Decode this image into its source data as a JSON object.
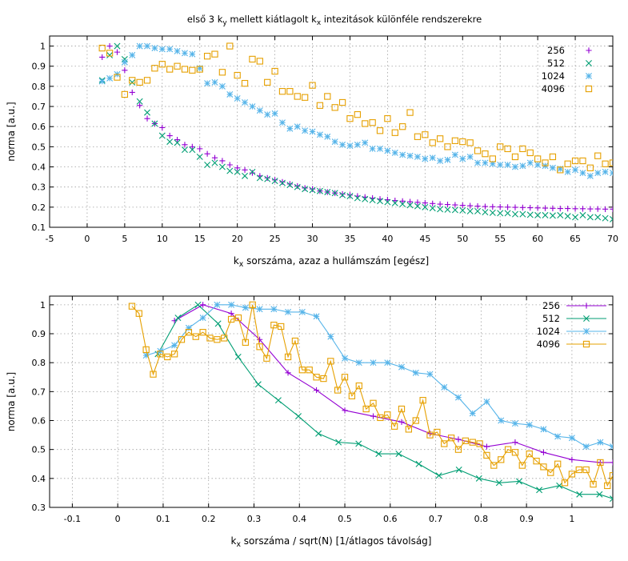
{
  "figure_title": "első 3 k_y mellett kiátlagolt k_x intezitások különféle rendszerekre",
  "colors": {
    "256": "#9400d3",
    "512": "#009e73",
    "1024": "#56b4e9",
    "4096": "#e6a000"
  },
  "chart_data": [
    {
      "type": "scatter",
      "title": "első 3 k_y mellett kiátlagolt k_x intezitások különféle rendszerekre",
      "xlabel": "k_x sorszáma, azaz a hullámszám [egész]",
      "ylabel": "norma [a.u.]",
      "xlim": [
        -5,
        70
      ],
      "ylim": [
        0.1,
        1.05
      ],
      "xticks": [
        -5,
        0,
        5,
        10,
        15,
        20,
        25,
        30,
        35,
        40,
        45,
        50,
        55,
        60,
        65,
        70
      ],
      "yticks": [
        0.1,
        0.2,
        0.3,
        0.4,
        0.5,
        0.6,
        0.7,
        0.8,
        0.9,
        1
      ],
      "grid": true,
      "legend": "top-right",
      "series": [
        {
          "name": "256",
          "marker": "plus",
          "x": [
            2,
            3,
            4,
            5,
            6,
            7,
            8,
            9,
            10,
            11,
            12,
            13,
            14,
            15,
            16,
            17,
            18,
            19,
            20,
            21,
            22,
            23,
            24,
            25,
            26,
            27,
            28,
            29,
            30,
            31,
            32,
            33,
            34,
            35,
            36,
            37,
            38,
            39,
            40,
            41,
            42,
            43,
            44,
            45,
            46,
            47,
            48,
            49,
            50,
            51,
            52,
            53,
            54,
            55,
            56,
            57,
            58,
            59,
            60,
            61,
            62,
            63,
            64,
            65,
            66,
            67,
            68,
            69,
            70
          ],
          "y": [
            0.945,
            1.0,
            0.97,
            0.88,
            0.77,
            0.705,
            0.64,
            0.615,
            0.595,
            0.555,
            0.535,
            0.51,
            0.5,
            0.49,
            0.465,
            0.445,
            0.43,
            0.41,
            0.395,
            0.385,
            0.37,
            0.355,
            0.345,
            0.335,
            0.325,
            0.315,
            0.305,
            0.295,
            0.29,
            0.28,
            0.275,
            0.27,
            0.265,
            0.26,
            0.255,
            0.25,
            0.245,
            0.24,
            0.237,
            0.233,
            0.23,
            0.227,
            0.224,
            0.221,
            0.218,
            0.215,
            0.213,
            0.211,
            0.209,
            0.207,
            0.205,
            0.203,
            0.202,
            0.201,
            0.2,
            0.199,
            0.198,
            0.197,
            0.196,
            0.195,
            0.194,
            0.193,
            0.193,
            0.192,
            0.192,
            0.191,
            0.191,
            0.19,
            0.19
          ]
        },
        {
          "name": "512",
          "marker": "cross",
          "x": [
            2,
            3,
            4,
            5,
            6,
            7,
            8,
            9,
            10,
            11,
            12,
            13,
            14,
            15,
            16,
            17,
            18,
            19,
            20,
            21,
            22,
            23,
            24,
            25,
            26,
            27,
            28,
            29,
            30,
            31,
            32,
            33,
            34,
            35,
            36,
            37,
            38,
            39,
            40,
            41,
            42,
            43,
            44,
            45,
            46,
            47,
            48,
            49,
            50,
            51,
            52,
            53,
            54,
            55,
            56,
            57,
            58,
            59,
            60,
            61,
            62,
            63,
            64,
            65,
            66,
            67,
            68,
            69,
            70
          ],
          "y": [
            0.83,
            0.955,
            1.0,
            0.935,
            0.82,
            0.725,
            0.67,
            0.615,
            0.555,
            0.525,
            0.52,
            0.485,
            0.485,
            0.45,
            0.41,
            0.42,
            0.4,
            0.38,
            0.375,
            0.355,
            0.375,
            0.345,
            0.34,
            0.33,
            0.32,
            0.31,
            0.3,
            0.29,
            0.285,
            0.28,
            0.275,
            0.27,
            0.26,
            0.255,
            0.245,
            0.24,
            0.235,
            0.23,
            0.225,
            0.22,
            0.215,
            0.21,
            0.205,
            0.2,
            0.195,
            0.19,
            0.188,
            0.186,
            0.184,
            0.18,
            0.18,
            0.175,
            0.172,
            0.17,
            0.17,
            0.165,
            0.165,
            0.162,
            0.16,
            0.16,
            0.158,
            0.16,
            0.155,
            0.15,
            0.16,
            0.15,
            0.15,
            0.145,
            0.14
          ]
        },
        {
          "name": "1024",
          "marker": "star",
          "x": [
            2,
            3,
            4,
            5,
            6,
            7,
            8,
            9,
            10,
            11,
            12,
            13,
            14,
            15,
            16,
            17,
            18,
            19,
            20,
            21,
            22,
            23,
            24,
            25,
            26,
            27,
            28,
            29,
            30,
            31,
            32,
            33,
            34,
            35,
            36,
            37,
            38,
            39,
            40,
            41,
            42,
            43,
            44,
            45,
            46,
            47,
            48,
            49,
            50,
            51,
            52,
            53,
            54,
            55,
            56,
            57,
            58,
            59,
            60,
            61,
            62,
            63,
            64,
            65,
            66,
            67,
            68,
            69,
            70
          ],
          "y": [
            0.825,
            0.84,
            0.86,
            0.92,
            0.955,
            1.0,
            1.0,
            0.99,
            0.985,
            0.985,
            0.975,
            0.965,
            0.96,
            0.89,
            0.815,
            0.82,
            0.8,
            0.76,
            0.74,
            0.72,
            0.7,
            0.68,
            0.66,
            0.665,
            0.62,
            0.59,
            0.6,
            0.58,
            0.575,
            0.56,
            0.55,
            0.525,
            0.51,
            0.505,
            0.51,
            0.52,
            0.49,
            0.49,
            0.48,
            0.47,
            0.46,
            0.455,
            0.45,
            0.44,
            0.445,
            0.43,
            0.435,
            0.46,
            0.44,
            0.45,
            0.42,
            0.42,
            0.415,
            0.41,
            0.41,
            0.4,
            0.405,
            0.42,
            0.41,
            0.405,
            0.395,
            0.39,
            0.375,
            0.385,
            0.37,
            0.355,
            0.37,
            0.375,
            0.37
          ]
        },
        {
          "name": "4096",
          "marker": "box",
          "x": [
            2,
            3,
            4,
            5,
            6,
            7,
            8,
            9,
            10,
            11,
            12,
            13,
            14,
            15,
            16,
            17,
            18,
            19,
            20,
            21,
            22,
            23,
            24,
            25,
            26,
            27,
            28,
            29,
            30,
            31,
            32,
            33,
            34,
            35,
            36,
            37,
            38,
            39,
            40,
            41,
            42,
            43,
            44,
            45,
            46,
            47,
            48,
            49,
            50,
            51,
            52,
            53,
            54,
            55,
            56,
            57,
            58,
            59,
            60,
            61,
            62,
            63,
            64,
            65,
            66,
            67,
            68,
            69,
            70
          ],
          "y": [
            0.99,
            0.965,
            0.845,
            0.76,
            0.83,
            0.82,
            0.83,
            0.89,
            0.91,
            0.885,
            0.9,
            0.885,
            0.88,
            0.885,
            0.95,
            0.96,
            0.87,
            1.0,
            0.855,
            0.815,
            0.935,
            0.925,
            0.82,
            0.875,
            0.775,
            0.775,
            0.75,
            0.745,
            0.805,
            0.705,
            0.75,
            0.695,
            0.72,
            0.64,
            0.66,
            0.615,
            0.62,
            0.58,
            0.64,
            0.57,
            0.6,
            0.67,
            0.55,
            0.56,
            0.52,
            0.54,
            0.5,
            0.53,
            0.525,
            0.52,
            0.48,
            0.465,
            0.44,
            0.5,
            0.49,
            0.45,
            0.49,
            0.47,
            0.44,
            0.42,
            0.45,
            0.385,
            0.415,
            0.43,
            0.43,
            0.395,
            0.455,
            0.415,
            0.42
          ]
        }
      ]
    },
    {
      "type": "line",
      "xlabel": "k_x sorszáma / sqrt(N) [1/átlagos távolság]",
      "ylabel": "norma [a.u.]",
      "xlim": [
        -0.15,
        1.09
      ],
      "ylim": [
        0.3,
        1.03
      ],
      "xticks": [
        -0.1,
        0,
        0.1,
        0.2,
        0.3,
        0.4,
        0.5,
        0.6,
        0.7,
        0.8,
        0.9,
        1
      ],
      "xticklabels": [
        "-0.1",
        "0",
        "0.1",
        "0.2",
        "0.3",
        "0.4",
        "0.5",
        "0.6",
        "0.7",
        "0.8",
        "0.9",
        "1"
      ],
      "yticks": [
        0.3,
        0.4,
        0.5,
        0.6,
        0.7,
        0.8,
        0.9,
        1
      ],
      "grid": true,
      "legend": "top-right",
      "series": [
        {
          "name": "256",
          "marker": "plus",
          "x": [
            0.125,
            0.1875,
            0.25,
            0.3125,
            0.375,
            0.4375,
            0.5,
            0.5625,
            0.625,
            0.6875,
            0.75,
            0.8125,
            0.875,
            0.9375,
            1.0,
            1.0625,
            1.09
          ],
          "y": [
            0.945,
            1.0,
            0.97,
            0.88,
            0.765,
            0.705,
            0.635,
            0.615,
            0.595,
            0.555,
            0.535,
            0.51,
            0.525,
            0.49,
            0.465,
            0.455,
            0.455
          ]
        },
        {
          "name": "512",
          "marker": "cross",
          "x": [
            0.0884,
            0.1326,
            0.1768,
            0.221,
            0.2652,
            0.3094,
            0.3536,
            0.3978,
            0.442,
            0.4861,
            0.5303,
            0.5745,
            0.6187,
            0.6629,
            0.7071,
            0.7513,
            0.7955,
            0.8397,
            0.8839,
            0.9281,
            0.9723,
            1.0165,
            1.0607,
            1.09
          ],
          "y": [
            0.83,
            0.955,
            1.0,
            0.935,
            0.82,
            0.725,
            0.67,
            0.615,
            0.555,
            0.525,
            0.52,
            0.485,
            0.485,
            0.45,
            0.41,
            0.43,
            0.4,
            0.385,
            0.39,
            0.36,
            0.375,
            0.345,
            0.345,
            0.33
          ]
        },
        {
          "name": "1024",
          "marker": "star",
          "x": [
            0.0625,
            0.0938,
            0.125,
            0.1563,
            0.1875,
            0.2188,
            0.25,
            0.2813,
            0.3125,
            0.3438,
            0.375,
            0.4063,
            0.4375,
            0.4688,
            0.5,
            0.5313,
            0.5625,
            0.5938,
            0.625,
            0.6563,
            0.6875,
            0.7188,
            0.75,
            0.7813,
            0.8125,
            0.8438,
            0.875,
            0.9063,
            0.9375,
            0.9688,
            1.0,
            1.0313,
            1.0625,
            1.09
          ],
          "y": [
            0.825,
            0.84,
            0.86,
            0.92,
            0.955,
            1.0,
            1.0,
            0.99,
            0.985,
            0.985,
            0.975,
            0.975,
            0.96,
            0.89,
            0.815,
            0.8,
            0.8,
            0.8,
            0.785,
            0.765,
            0.76,
            0.715,
            0.68,
            0.625,
            0.665,
            0.6,
            0.59,
            0.585,
            0.57,
            0.545,
            0.54,
            0.51,
            0.525,
            0.51
          ]
        },
        {
          "name": "4096",
          "marker": "box",
          "x": [
            0.0313,
            0.0469,
            0.0625,
            0.0781,
            0.0938,
            0.1094,
            0.125,
            0.1406,
            0.1563,
            0.1719,
            0.1875,
            0.2031,
            0.2188,
            0.2344,
            0.25,
            0.2656,
            0.2813,
            0.2969,
            0.3125,
            0.3281,
            0.3438,
            0.3594,
            0.375,
            0.3906,
            0.4063,
            0.4219,
            0.4375,
            0.4531,
            0.4688,
            0.4844,
            0.5,
            0.5156,
            0.5313,
            0.5469,
            0.5625,
            0.5781,
            0.5938,
            0.6094,
            0.625,
            0.6406,
            0.6563,
            0.6719,
            0.6875,
            0.7031,
            0.7188,
            0.7344,
            0.75,
            0.7656,
            0.7813,
            0.7969,
            0.8125,
            0.8281,
            0.8438,
            0.8594,
            0.875,
            0.8906,
            0.9063,
            0.9219,
            0.9375,
            0.9531,
            0.9688,
            0.9844,
            1.0,
            1.0156,
            1.0313,
            1.0469,
            1.0625,
            1.0781,
            1.09
          ],
          "y": [
            0.995,
            0.97,
            0.845,
            0.76,
            0.83,
            0.82,
            0.83,
            0.88,
            0.905,
            0.89,
            0.905,
            0.885,
            0.88,
            0.885,
            0.95,
            0.955,
            0.87,
            1.0,
            0.855,
            0.815,
            0.93,
            0.925,
            0.82,
            0.875,
            0.775,
            0.775,
            0.75,
            0.745,
            0.805,
            0.705,
            0.75,
            0.685,
            0.72,
            0.64,
            0.66,
            0.61,
            0.62,
            0.58,
            0.64,
            0.57,
            0.6,
            0.67,
            0.55,
            0.56,
            0.52,
            0.54,
            0.5,
            0.53,
            0.525,
            0.52,
            0.48,
            0.445,
            0.465,
            0.5,
            0.49,
            0.445,
            0.485,
            0.46,
            0.44,
            0.42,
            0.45,
            0.385,
            0.415,
            0.43,
            0.43,
            0.38,
            0.455,
            0.375,
            0.41
          ]
        }
      ]
    }
  ]
}
